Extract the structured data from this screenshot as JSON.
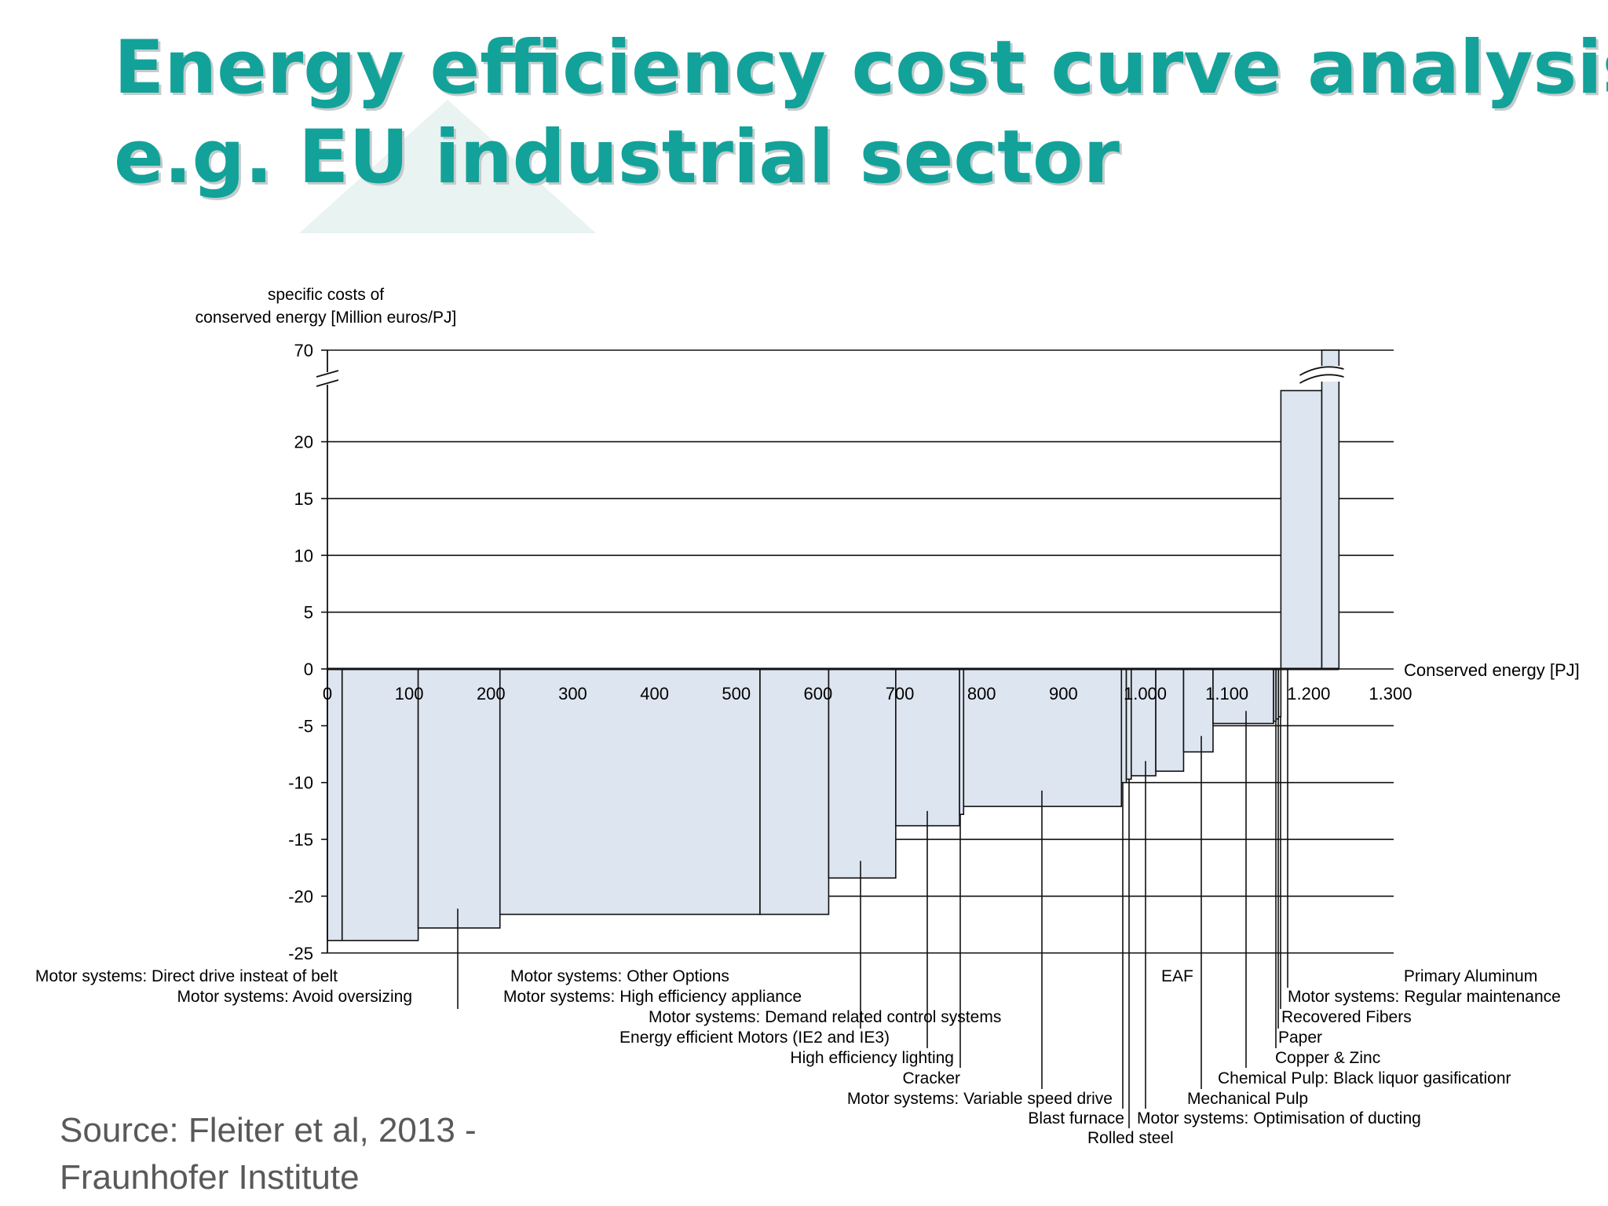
{
  "slide": {
    "title_line1": "Energy efficiency cost curve analysis",
    "title_line2": "e.g. EU industrial sector",
    "source_line1": "Source: Fleiter et al, 2013 -",
    "source_line2": "Fraunhofer Institute"
  },
  "chart_data": {
    "type": "bar",
    "subtype": "marginal-cost-curve",
    "title": "",
    "ylabel": [
      "specific costs of",
      "conserved energy  [Million euros/PJ]"
    ],
    "xlabel": "Conserved energy [PJ]",
    "xlim": [
      0,
      1300
    ],
    "ylim": [
      -25,
      70
    ],
    "y_axis_break": [
      25,
      70
    ],
    "grid": "horizontal",
    "x_ticks": [
      {
        "value": 0,
        "label": "0"
      },
      {
        "value": 100,
        "label": "100"
      },
      {
        "value": 200,
        "label": "200"
      },
      {
        "value": 300,
        "label": "300"
      },
      {
        "value": 400,
        "label": "400"
      },
      {
        "value": 500,
        "label": "500"
      },
      {
        "value": 600,
        "label": "600"
      },
      {
        "value": 700,
        "label": "700"
      },
      {
        "value": 800,
        "label": "800"
      },
      {
        "value": 900,
        "label": "900"
      },
      {
        "value": 1000,
        "label": "1.000"
      },
      {
        "value": 1100,
        "label": "1.100"
      },
      {
        "value": 1200,
        "label": "1.200"
      },
      {
        "value": 1300,
        "label": "1.300"
      }
    ],
    "y_ticks": [
      {
        "value": 70,
        "label": "70"
      },
      {
        "value": 20,
        "label": "20"
      },
      {
        "value": 15,
        "label": "15"
      },
      {
        "value": 10,
        "label": "10"
      },
      {
        "value": 5,
        "label": "5"
      },
      {
        "value": 0,
        "label": "0"
      },
      {
        "value": -5,
        "label": "-5"
      },
      {
        "value": -10,
        "label": "-10"
      },
      {
        "value": -15,
        "label": "-15"
      },
      {
        "value": -20,
        "label": "-20"
      },
      {
        "value": -25,
        "label": "-25"
      }
    ],
    "measures": [
      {
        "label": "Motor systems: Direct drive insteat of belt",
        "x_start": 0,
        "x_end": 18,
        "cost": -23.9
      },
      {
        "label": "Motor systems: Avoid oversizing",
        "x_start": 18,
        "x_end": 111,
        "cost": -23.9
      },
      {
        "label": "Motor systems: Demand related control systems",
        "x_start": 111,
        "x_end": 211,
        "cost": -22.8
      },
      {
        "label": "Motor systems: Other Options",
        "x_start": 211,
        "x_end": 529,
        "cost": -21.6
      },
      {
        "label": "Motor systems: High efficiency appliance",
        "x_start": 529,
        "x_end": 613,
        "cost": -21.6
      },
      {
        "label": "Energy efficient Motors (IE2 and IE3)",
        "x_start": 613,
        "x_end": 695,
        "cost": -18.4
      },
      {
        "label": "High efficiency lighting",
        "x_start": 695,
        "x_end": 773,
        "cost": -13.8
      },
      {
        "label": "Cracker",
        "x_start": 773,
        "x_end": 778,
        "cost": -12.8
      },
      {
        "label": "Motor systems: Variable speed drive",
        "x_start": 778,
        "x_end": 971,
        "cost": -12.1
      },
      {
        "label": "Blast furnace",
        "x_start": 971,
        "x_end": 977,
        "cost": -10.0
      },
      {
        "label": "Rolled steel",
        "x_start": 977,
        "x_end": 983,
        "cost": -9.7
      },
      {
        "label": "Motor systems: Optimisation of ducting",
        "x_start": 983,
        "x_end": 1013,
        "cost": -9.4
      },
      {
        "label": "EAF",
        "x_start": 1013,
        "x_end": 1047,
        "cost": -9.0
      },
      {
        "label": "Mechanical Pulp",
        "x_start": 1047,
        "x_end": 1083,
        "cost": -7.3
      },
      {
        "label": "Chemical Pulp: Black liquor gasificationr",
        "x_start": 1083,
        "x_end": 1157,
        "cost": -4.8
      },
      {
        "label": "Copper & Zinc",
        "x_start": 1157,
        "x_end": 1160,
        "cost": -4.6
      },
      {
        "label": "Paper",
        "x_start": 1160,
        "x_end": 1163,
        "cost": -4.4
      },
      {
        "label": "Recovered Fibers",
        "x_start": 1163,
        "x_end": 1166,
        "cost": -4.2
      },
      {
        "label": "Motor systems: Regular maintenance",
        "x_start": 1166,
        "x_end": 1216,
        "cost": 24.5
      },
      {
        "label": "Primary Aluminum",
        "x_start": 1216,
        "x_end": 1237,
        "cost": 70
      }
    ],
    "annotations": [
      {
        "text": "Motor systems: Direct drive insteat of belt",
        "measure": 0,
        "pointer_value": -23.9
      },
      {
        "text": "Motor systems: Avoid oversizing",
        "measure": 1,
        "pointer_value": -23.9
      },
      {
        "text": "Motor systems: Demand related control systems",
        "measure": 2,
        "pointer_value": -21.1
      },
      {
        "text": "Motor systems: Other Options",
        "measure": 3,
        "pointer_value": -21.6
      },
      {
        "text": "Motor systems: High efficiency appliance",
        "measure": 4,
        "pointer_value": -21.6
      },
      {
        "text": "Energy efficient Motors (IE2 and IE3)",
        "measure": 5,
        "pointer_value": -16.9
      },
      {
        "text": "High efficiency lighting",
        "measure": 6,
        "pointer_value": -12.5
      },
      {
        "text": "Cracker",
        "measure": 7,
        "pointer_value": -12.8
      },
      {
        "text": "Motor systems: Variable speed drive",
        "measure": 8,
        "pointer_value": -10.7
      },
      {
        "text": "Blast furnace",
        "measure": 9,
        "pointer_value": -10.0
      },
      {
        "text": "Rolled steel",
        "measure": 10,
        "pointer_value": -9.7
      },
      {
        "text": "Motor systems: Optimisation of ducting",
        "measure": 11,
        "pointer_value": -8.1
      },
      {
        "text": "EAF",
        "measure": 12,
        "pointer_value": -9.0
      },
      {
        "text": "Mechanical Pulp",
        "measure": 13,
        "pointer_value": -5.9
      },
      {
        "text": "Chemical Pulp: Black liquor gasificationr",
        "measure": 14,
        "pointer_value": -3.7
      },
      {
        "text": "Copper & Zinc",
        "measure": 15,
        "pointer_value": -4.6
      },
      {
        "text": "Paper",
        "measure": 16,
        "pointer_value": -4.4
      },
      {
        "text": "Recovered Fibers",
        "measure": 17,
        "pointer_value": -4.2
      },
      {
        "text": "Motor systems: Regular maintenance",
        "measure": 18,
        "pointer_value": 0
      },
      {
        "text": "Primary Aluminum",
        "measure": 19,
        "pointer_value": 0
      }
    ],
    "colors": {
      "bar_fill": "#dde5f0",
      "bar_stroke": "#111111",
      "grid": "#111111"
    }
  }
}
